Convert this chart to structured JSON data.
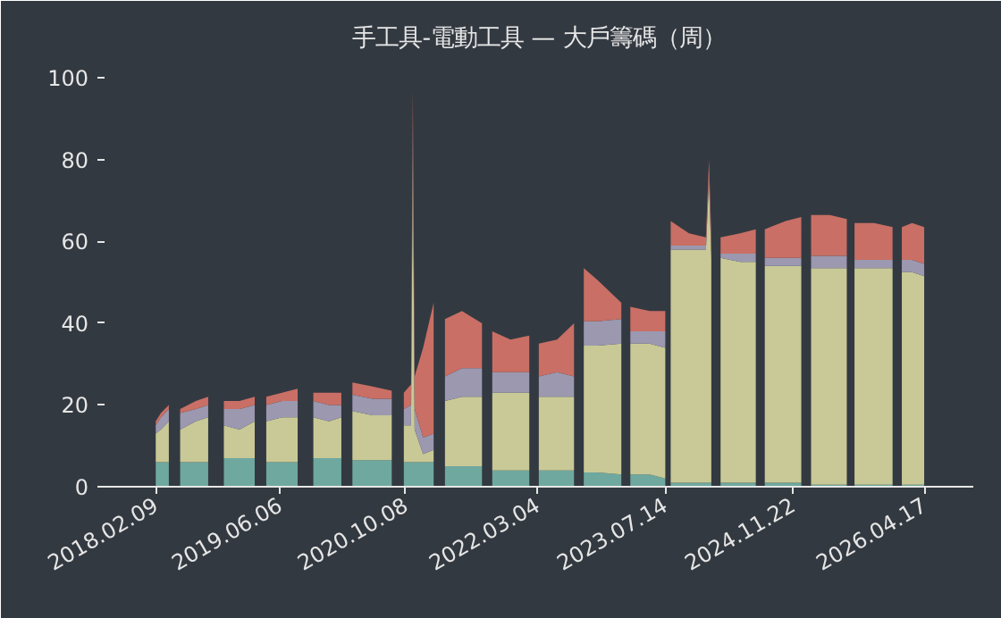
{
  "chart_data": {
    "type": "area",
    "stacked": true,
    "title": "手工具-電動工具 — 大戶籌碼（周）",
    "x": [
      "2018-02-09",
      "2018-03-01",
      "2018-04-01",
      "2018-05-01",
      "2018-05-15",
      "2018-07-15",
      "2018-09-01",
      "2018-10-01",
      "2018-11-01",
      "2019-01-01",
      "2019-03-01",
      "2019-04-01",
      "2019-04-15",
      "2019-06-15",
      "2019-08-15",
      "2019-09-15",
      "2019-10-15",
      "2019-12-15",
      "2020-02-01",
      "2020-03-01",
      "2020-03-15",
      "2020-06-01",
      "2020-08-15",
      "2020-09-15",
      "2020-10-01",
      "2020-10-29",
      "2020-11-05",
      "2020-11-12",
      "2020-12-15",
      "2021-01-25",
      "2021-02-20",
      "2021-03-10",
      "2021-05-15",
      "2021-08-01",
      "2021-08-25",
      "2021-09-10",
      "2021-11-20",
      "2022-02-01",
      "2022-02-20",
      "2022-03-10",
      "2022-05-20",
      "2022-07-25",
      "2022-08-15",
      "2022-09-01",
      "2022-10-25",
      "2023-01-25",
      "2023-02-10",
      "2023-03-01",
      "2023-05-15",
      "2023-07-15",
      "2023-07-28",
      "2023-08-05",
      "2023-10-15",
      "2023-12-20",
      "2024-01-01",
      "2024-01-10",
      "2024-01-25",
      "2024-02-15",
      "2024-05-01",
      "2024-07-01",
      "2024-07-25",
      "2024-08-05",
      "2024-10-25",
      "2024-12-25",
      "2025-01-15",
      "2025-02-01",
      "2025-04-15",
      "2025-06-20",
      "2025-07-10",
      "2025-07-20",
      "2025-10-05",
      "2025-12-15",
      "2026-01-05",
      "2026-01-20",
      "2026-03-01",
      "2026-04-17"
    ],
    "series": [
      {
        "color": "#6fa89f",
        "values": [
          6,
          6,
          6,
          null,
          6,
          6,
          6,
          null,
          7,
          7,
          7,
          null,
          6,
          6,
          6,
          null,
          7,
          7,
          7,
          null,
          6.5,
          6.5,
          6.5,
          null,
          6,
          6,
          6,
          6,
          6,
          6,
          null,
          5,
          5,
          5,
          null,
          4,
          4,
          4,
          null,
          4,
          4,
          4,
          null,
          3.5,
          3.5,
          3,
          null,
          3,
          3,
          2,
          null,
          1,
          1,
          1,
          1,
          1,
          null,
          1,
          1,
          1,
          null,
          1,
          1,
          1,
          null,
          0.5,
          0.5,
          0.5,
          null,
          0.5,
          0.5,
          0.5,
          null,
          0.5,
          0.5,
          0.5
        ]
      },
      {
        "color": "#c8c996",
        "values": [
          7,
          8,
          10,
          null,
          8,
          10,
          11,
          null,
          8,
          7,
          9,
          null,
          10,
          11,
          11,
          null,
          10,
          9,
          10,
          null,
          12,
          11,
          11,
          null,
          9,
          9,
          76,
          8,
          2,
          3,
          null,
          16,
          17,
          17,
          null,
          19,
          19,
          19,
          null,
          18,
          18,
          18,
          null,
          31,
          31,
          32,
          null,
          32,
          32,
          32,
          null,
          57,
          57,
          57,
          74,
          55,
          null,
          55,
          54,
          54,
          null,
          53,
          53,
          53,
          null,
          53,
          53,
          53,
          null,
          53,
          53,
          53,
          null,
          52,
          52,
          51
        ]
      },
      {
        "color": "#9b98b0",
        "values": [
          2,
          3,
          3,
          null,
          4,
          3,
          3,
          null,
          4,
          5,
          4,
          null,
          4,
          4,
          4,
          null,
          4,
          4,
          3,
          null,
          4,
          4,
          4,
          null,
          4,
          5,
          6,
          5,
          4,
          4,
          null,
          6,
          7,
          7,
          null,
          5,
          5,
          5,
          null,
          5,
          6,
          5,
          null,
          6,
          6,
          6,
          null,
          3,
          3,
          4,
          null,
          1,
          1,
          1,
          1,
          1,
          null,
          1,
          2,
          2,
          null,
          2,
          2,
          2,
          null,
          3,
          3,
          3,
          null,
          2,
          2,
          2,
          null,
          3,
          3,
          3
        ]
      },
      {
        "color": "#c96f65",
        "values": [
          1,
          1,
          1,
          null,
          1,
          2,
          2,
          null,
          2,
          2,
          2,
          null,
          2,
          2,
          3,
          null,
          2,
          3,
          3,
          null,
          3,
          3,
          2,
          null,
          4,
          5,
          9,
          8,
          22,
          32,
          null,
          14,
          14,
          11,
          null,
          10,
          8,
          9,
          null,
          8,
          8,
          13,
          null,
          13,
          10,
          4,
          null,
          6,
          5,
          5,
          null,
          6,
          3,
          2,
          4,
          4,
          null,
          4,
          5,
          6,
          null,
          7,
          9,
          10,
          null,
          10,
          10,
          9,
          null,
          9,
          9,
          8,
          null,
          8,
          9,
          9
        ]
      }
    ],
    "xlim": [
      "2017-07-25",
      "2026-10-25"
    ],
    "xticks": [
      {
        "value": "2018-02-09",
        "label": "2018.02.09"
      },
      {
        "value": "2019-06-06",
        "label": "2019.06.06"
      },
      {
        "value": "2020-10-08",
        "label": "2020.10.08"
      },
      {
        "value": "2022-03-04",
        "label": "2022.03.04"
      },
      {
        "value": "2023-07-14",
        "label": "2023.07.14"
      },
      {
        "value": "2024-11-22",
        "label": "2024.11.22"
      },
      {
        "value": "2026-04-17",
        "label": "2026.04.17"
      }
    ],
    "ylim": [
      0,
      104
    ],
    "yticks": [
      0,
      20,
      40,
      60,
      80,
      100
    ],
    "grid": false
  }
}
